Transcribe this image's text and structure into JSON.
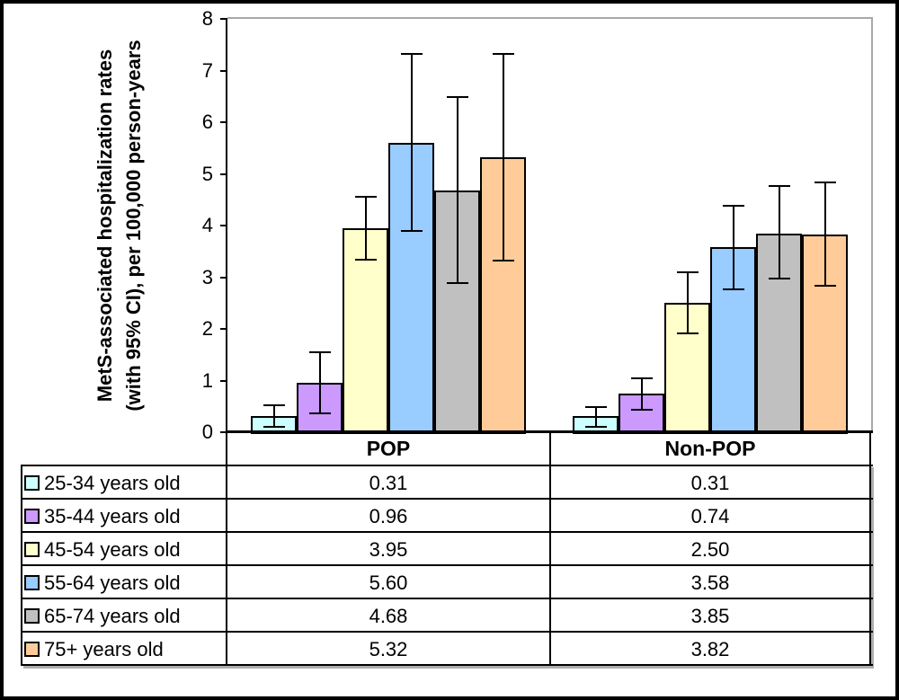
{
  "chart_data": {
    "type": "bar",
    "title": "",
    "ylabel_line1": "MetS-associated hospitalization rates",
    "ylabel_line2": "(with 95% CI), per 100,000 person-years",
    "xlabel": "",
    "ylim": [
      0,
      8
    ],
    "yticks": [
      0,
      1,
      2,
      3,
      4,
      5,
      6,
      7,
      8
    ],
    "grid": false,
    "error_bars": true,
    "legend_position": "table-below",
    "categories": [
      "POP",
      "Non-POP"
    ],
    "series": [
      {
        "name": "25-34 years old",
        "color": "#CCFFFF",
        "values": [
          0.31,
          0.31
        ],
        "ci_low": [
          0.1,
          0.1
        ],
        "ci_high": [
          0.52,
          0.49
        ]
      },
      {
        "name": "35-44 years old",
        "color": "#CC99FF",
        "values": [
          0.96,
          0.74
        ],
        "ci_low": [
          0.36,
          0.43
        ],
        "ci_high": [
          1.55,
          1.05
        ]
      },
      {
        "name": "45-54 years old",
        "color": "#FFFFCC",
        "values": [
          3.95,
          2.5
        ],
        "ci_low": [
          3.34,
          1.91
        ],
        "ci_high": [
          4.55,
          3.1
        ]
      },
      {
        "name": "55-64 years old",
        "color": "#99CCFF",
        "values": [
          5.6,
          3.58
        ],
        "ci_low": [
          3.9,
          2.76
        ],
        "ci_high": [
          7.33,
          4.38
        ]
      },
      {
        "name": "65-74 years old",
        "color": "#C0C0C0",
        "values": [
          4.68,
          3.85
        ],
        "ci_low": [
          2.88,
          2.97
        ],
        "ci_high": [
          6.49,
          4.77
        ]
      },
      {
        "name": "75+ years old",
        "color": "#FFCC99",
        "values": [
          5.32,
          3.82
        ],
        "ci_low": [
          3.33,
          2.84
        ],
        "ci_high": [
          7.33,
          4.84
        ]
      }
    ]
  },
  "table": {
    "col_headers": [
      "POP",
      "Non-POP"
    ],
    "rows": [
      {
        "label": "25-34 years old",
        "swatch_color": "#CCFFFF",
        "values": [
          "0.31",
          "0.31"
        ]
      },
      {
        "label": "35-44 years old",
        "swatch_color": "#CC99FF",
        "values": [
          "0.96",
          "0.74"
        ]
      },
      {
        "label": "45-54 years old",
        "swatch_color": "#FFFFCC",
        "values": [
          "3.95",
          "2.50"
        ]
      },
      {
        "label": "55-64 years old",
        "swatch_color": "#99CCFF",
        "values": [
          "5.60",
          "3.58"
        ]
      },
      {
        "label": "65-74 years old",
        "swatch_color": "#C0C0C0",
        "values": [
          "4.68",
          "3.85"
        ]
      },
      {
        "label": "75+ years old",
        "swatch_color": "#FFCC99",
        "values": [
          "5.32",
          "3.82"
        ]
      }
    ]
  },
  "colors": {
    "axis": "#000000",
    "plot_border": "#A9A9A9",
    "bar_border": "#000000",
    "error_bar": "#000000",
    "background": "#FFFFFF"
  }
}
